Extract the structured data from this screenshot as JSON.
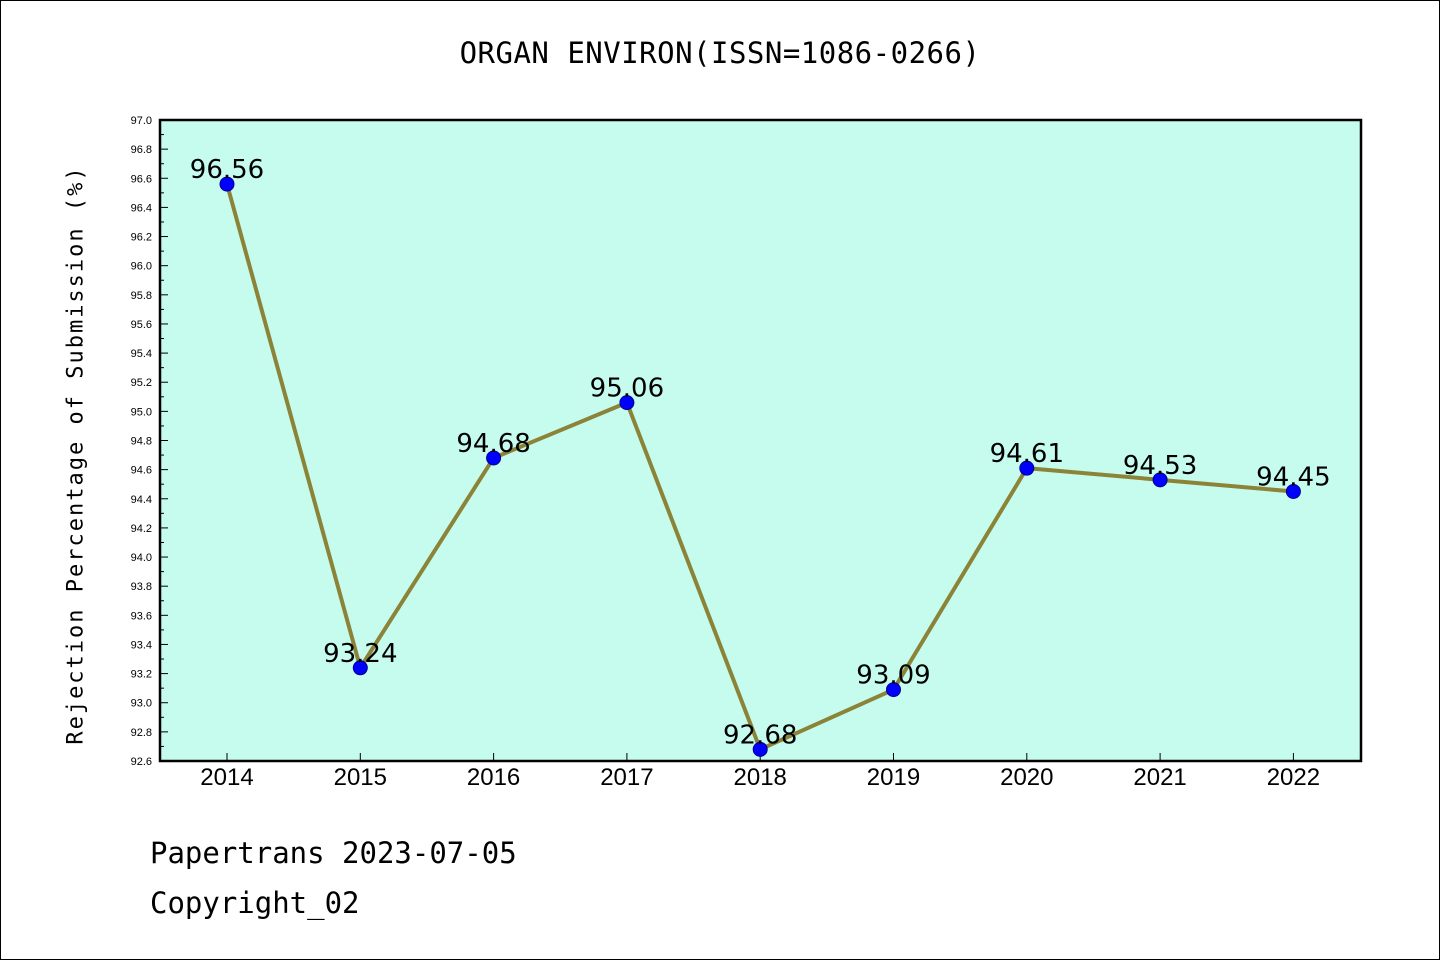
{
  "chart_data": {
    "type": "line",
    "title": "ORGAN ENVIRON(ISSN=1086-0266)",
    "xlabel": "",
    "ylabel": "Rejection Percentage of Submission (%)",
    "categories": [
      "2014",
      "2015",
      "2016",
      "2017",
      "2018",
      "2019",
      "2020",
      "2021",
      "2022"
    ],
    "series": [
      {
        "values": [
          96.56,
          93.24,
          94.68,
          95.06,
          92.68,
          93.09,
          94.61,
          94.53,
          94.45
        ],
        "labels": [
          "96.56",
          "93.24",
          "94.68",
          "95.06",
          "92.68",
          "93.09",
          "94.61",
          "94.53",
          "94.45"
        ]
      }
    ],
    "ylim": [
      92.6,
      97.0
    ],
    "yticks": [
      "92.6",
      "92.8",
      "93.0",
      "93.2",
      "93.4",
      "93.6",
      "93.8",
      "94.0",
      "94.2",
      "94.4",
      "94.6",
      "94.8",
      "95.0",
      "95.2",
      "95.4",
      "95.6",
      "95.8",
      "96.0",
      "96.2",
      "96.4",
      "96.6",
      "96.8",
      "97.0"
    ],
    "grid": false,
    "colors": {
      "plot_background": "#c6fcee",
      "line": "#8b8438",
      "marker": "#0000ff"
    }
  },
  "footer": {
    "line1": "Papertrans 2023-07-05",
    "line2": "Copyright_02"
  }
}
